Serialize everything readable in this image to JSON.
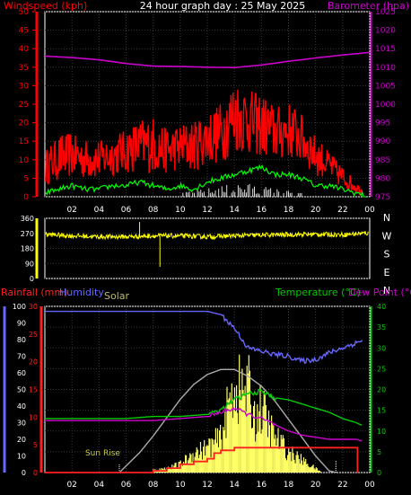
{
  "colors": {
    "background": "#000000",
    "panel_border": "#ffffff",
    "grid": "#3a3a3a",
    "windspeed": "#ff0000",
    "wind_average": "#00ff00",
    "barometer": "#cc00cc",
    "wind_direction": "#ffff00",
    "rainfall": "#ff2020",
    "humidity": "#6666ff",
    "solar": "#ffff66",
    "solar_max": "#aaaaaa",
    "temperature": "#00cc00",
    "dewpoint": "#cc00cc",
    "axis_text": "#ffffff",
    "bar_left": "#ff0000",
    "bar_right": "#cc00cc",
    "bar_humidity": "#6666ff",
    "bar_temp": "#00cc00"
  },
  "labels": {
    "windspeed": "Windspeed (kph)",
    "title": "24 hour graph day : 25 May 2025",
    "barometer": "Barometer (hpa)",
    "rainfall": "Rainfall (mm)",
    "humidity": "Humidity",
    "solar": "Solar",
    "temperature": "Temperature (°C)",
    "dewpoint": "Dew Point (°C)",
    "sun_rise": "Sun Rise"
  },
  "chart_data": [
    {
      "type": "line",
      "panel": "wind-barometer",
      "xlabels": [
        "02",
        "04",
        "06",
        "08",
        "10",
        "12",
        "14",
        "16",
        "18",
        "20",
        "22",
        "00"
      ],
      "left_axis": {
        "label": "Windspeed (kph)",
        "ylim": [
          0,
          50
        ],
        "ticks": [
          0,
          5,
          10,
          15,
          20,
          25,
          30,
          35,
          40,
          45,
          50
        ]
      },
      "right_axis": {
        "label": "Barometer (hpa)",
        "ylim": [
          975,
          1025
        ],
        "ticks": [
          975,
          980,
          985,
          990,
          995,
          1000,
          1005,
          1010,
          1015,
          1020,
          1025
        ]
      },
      "series": [
        {
          "name": "Barometer (hpa)",
          "axis": "right",
          "x": [
            0,
            2,
            4,
            6,
            8,
            10,
            12,
            14,
            16,
            18,
            20,
            22,
            24
          ],
          "values": [
            1013.0,
            1012.6,
            1012.0,
            1011.0,
            1010.3,
            1010.2,
            1010.0,
            1009.9,
            1010.6,
            1011.6,
            1012.5,
            1013.3,
            1014.0
          ]
        },
        {
          "name": "Windspeed (kph)",
          "axis": "left",
          "x": [
            0,
            1,
            2,
            3,
            4,
            5,
            6,
            7,
            8,
            9,
            10,
            11,
            12,
            13,
            14,
            15,
            16,
            17,
            18,
            19,
            20,
            21,
            22,
            23,
            24
          ],
          "gust_envelope": [
            12,
            16,
            17,
            15,
            15,
            16,
            18,
            20,
            21,
            18,
            19,
            20,
            22,
            25,
            31,
            29,
            27,
            24,
            25,
            22,
            16,
            12,
            8,
            4,
            0
          ],
          "values": [
            6,
            8,
            9,
            8,
            8,
            9,
            10,
            11,
            11,
            10,
            11,
            11,
            13,
            14,
            18,
            17,
            16,
            14,
            15,
            13,
            9,
            7,
            4,
            2,
            0
          ]
        },
        {
          "name": "Average wind",
          "axis": "left",
          "x": [
            0,
            1,
            2,
            3,
            4,
            5,
            6,
            7,
            8,
            9,
            10,
            11,
            12,
            13,
            14,
            15,
            16,
            17,
            18,
            19,
            20,
            21,
            22,
            23,
            24
          ],
          "values": [
            1,
            2,
            3,
            2,
            2,
            3,
            3,
            4,
            3,
            2,
            3,
            2,
            4,
            5,
            6,
            7,
            8,
            6,
            6,
            5,
            3,
            3,
            2,
            1,
            0
          ]
        }
      ]
    },
    {
      "type": "scatter",
      "panel": "wind-direction",
      "xlabels": [
        "02",
        "04",
        "06",
        "08",
        "10",
        "12",
        "14",
        "16",
        "18",
        "20",
        "22",
        "00"
      ],
      "left_axis": {
        "ylim": [
          0,
          360
        ],
        "ticks": [
          0,
          90,
          180,
          270,
          360
        ]
      },
      "right_axis": {
        "compass": [
          "N",
          "W",
          "S",
          "E",
          "N"
        ]
      },
      "series": [
        {
          "name": "Wind direction",
          "x": [
            0,
            2,
            4,
            6,
            8,
            10,
            12,
            14,
            16,
            18,
            20,
            22,
            23.5
          ],
          "values": [
            265,
            255,
            250,
            250,
            255,
            255,
            250,
            255,
            260,
            262,
            265,
            262,
            270
          ],
          "spikes": [
            {
              "x": 7.0,
              "y": 338
            },
            {
              "x": 8.5,
              "y": 70
            }
          ]
        }
      ]
    },
    {
      "type": "line",
      "panel": "rain-humidity-solar-temperature",
      "xlabels": [
        "02",
        "04",
        "06",
        "08",
        "10",
        "12",
        "14",
        "16",
        "18",
        "20",
        "22",
        "00"
      ],
      "humidity_axis": {
        "label": "Humidity",
        "ylim": [
          0,
          100
        ],
        "ticks": [
          0,
          10,
          20,
          30,
          40,
          50,
          60,
          70,
          80,
          90,
          100
        ]
      },
      "rain_axis": {
        "label": "Rainfall (mm)",
        "ylim": [
          0,
          30
        ],
        "ticks": [
          0,
          5,
          10,
          15,
          20,
          25,
          30
        ]
      },
      "temp_axis": {
        "label": "Temperature (°C)",
        "ylim": [
          0,
          40
        ],
        "ticks": [
          0,
          5,
          10,
          15,
          20,
          25,
          30,
          35,
          40
        ]
      },
      "series": [
        {
          "name": "Humidity",
          "axis": "humidity",
          "x": [
            0,
            2,
            4,
            6,
            8,
            10,
            12,
            13,
            14,
            15,
            16,
            17,
            18,
            19,
            20,
            21,
            22,
            23,
            24
          ],
          "values": [
            97,
            97,
            97,
            97,
            97,
            97,
            97,
            95,
            87,
            75,
            73,
            71,
            70,
            67,
            68,
            72,
            75,
            78,
            82
          ]
        },
        {
          "name": "Temperature (°C)",
          "axis": "temp",
          "x": [
            0,
            2,
            4,
            6,
            8,
            10,
            12,
            13,
            14,
            15,
            16,
            17,
            18,
            19,
            20,
            21,
            22,
            23,
            24
          ],
          "values": [
            13.0,
            13.0,
            13.0,
            13.0,
            13.5,
            13.5,
            14.0,
            15.0,
            17.5,
            19.0,
            19.5,
            18.0,
            17.5,
            16.5,
            15.5,
            14.5,
            13.0,
            12.0,
            10.5
          ]
        },
        {
          "name": "Dew Point (°C)",
          "axis": "temp",
          "x": [
            0,
            2,
            4,
            6,
            8,
            10,
            12,
            13,
            14,
            15,
            16,
            17,
            18,
            19,
            20,
            21,
            22,
            23,
            24
          ],
          "values": [
            12.5,
            12.5,
            12.5,
            12.5,
            12.5,
            13.0,
            13.5,
            14.5,
            15.5,
            14.0,
            13.0,
            11.5,
            10.0,
            9.0,
            8.5,
            8.0,
            8.0,
            8.0,
            7.0
          ]
        },
        {
          "name": "Solar",
          "axis": "humidity",
          "x": [
            8,
            9,
            10,
            11,
            12,
            13,
            13.5,
            14,
            14.5,
            15,
            15.5,
            16,
            16.5,
            17,
            18,
            19,
            20,
            20.5
          ],
          "values": [
            2,
            3,
            6,
            14,
            18,
            25,
            45,
            65,
            58,
            62,
            40,
            47,
            35,
            26,
            15,
            9,
            3,
            0
          ],
          "max_curve": {
            "x": [
              5.5,
              7,
              8,
              9,
              10,
              11,
              12,
              13,
              14,
              15,
              16,
              17,
              18,
              19,
              20,
              21,
              21.5
            ],
            "values": [
              0,
              12,
              22,
              33,
              44,
              53,
              59,
              62,
              62,
              58,
              52,
              43,
              32,
              21,
              10,
              1,
              0
            ]
          }
        },
        {
          "name": "Rainfall (mm)",
          "axis": "rain",
          "x": [
            0,
            8,
            9,
            10,
            11,
            12,
            12.5,
            13,
            14,
            15,
            16,
            17,
            18,
            19,
            20,
            21,
            22,
            23.1
          ],
          "values": [
            0,
            0.3,
            0.8,
            1.5,
            2.0,
            2.5,
            3.5,
            4.0,
            4.5,
            4.5,
            4.5,
            4.5,
            4.5,
            4.5,
            4.5,
            4.5,
            4.5,
            4.5
          ]
        }
      ],
      "annotations": [
        {
          "text": "Sun Rise",
          "x": 5.5
        }
      ]
    }
  ]
}
